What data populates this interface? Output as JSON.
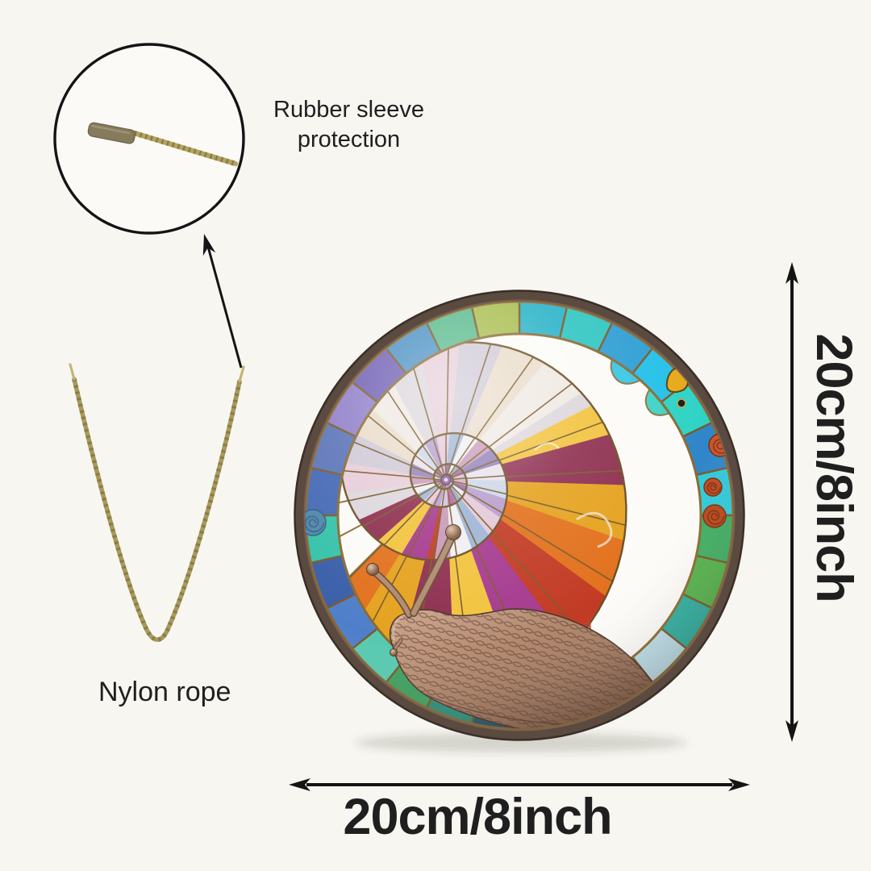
{
  "product": {
    "subject": "Stained glass style snail round wall hanging",
    "dimensions": {
      "width_label": "20cm/8inch",
      "height_label": "20cm/8inch"
    }
  },
  "callouts": {
    "rubber_sleeve_line1": "Rubber sleeve",
    "rubber_sleeve_line2": "protection",
    "nylon_rope": "Nylon rope"
  },
  "colors": {
    "background": "#f7f6f1",
    "text": "#1f1f1f",
    "arrow": "#141414",
    "rope_gold": "#a89a5c",
    "rubber_sleeve_gray": "#877b5e",
    "frame_bronze": "#8a6a33",
    "rim_brown": "#5b4a3f",
    "glass_teal": "#2fae9f",
    "glass_blue": "#2f86c8",
    "glass_green": "#55b24c",
    "glass_cyan": "#25c0e8",
    "glass_yellow_green": "#a8bd4f",
    "shell_amber": "#e5a21f",
    "shell_orange": "#e2711d",
    "shell_red": "#c23b24",
    "shell_pink": "#d9a9c4",
    "shell_lavender": "#b79ccc",
    "snail_brown": "#a87e64",
    "rose_red": "#c04a20",
    "rose_teal": "#4f86a9",
    "accent_yellow_drop": "#e8a818"
  }
}
